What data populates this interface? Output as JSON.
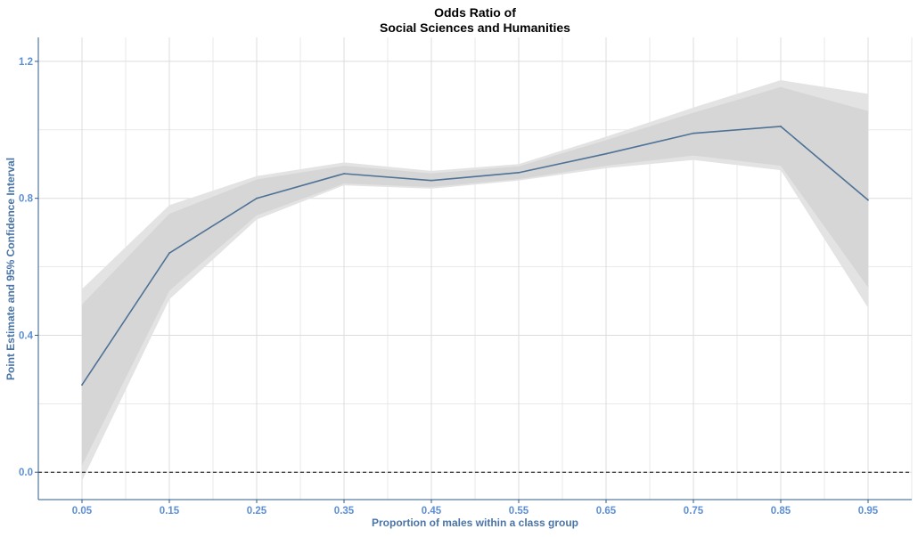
{
  "chart_data": {
    "type": "line",
    "title_lines": [
      "Odds Ratio of",
      "Social Sciences and Humanities"
    ],
    "xlabel": "Proportion of males within a class group",
    "ylabel": "Point Estimate and 95% Confidence Interval",
    "x": [
      0.05,
      0.15,
      0.25,
      0.35,
      0.45,
      0.55,
      0.65,
      0.75,
      0.85,
      0.95
    ],
    "x_tick_labels": [
      "0.05",
      "0.15",
      "0.25",
      "0.35",
      "0.45",
      "0.55",
      "0.65",
      "0.75",
      "0.85",
      "0.95"
    ],
    "y_ticks": [
      0.0,
      0.4,
      0.8,
      1.2
    ],
    "y_tick_labels": [
      "0.0",
      "0.4",
      "0.8",
      "1.2"
    ],
    "xlim": [
      0.0,
      1.0
    ],
    "ylim": [
      -0.08,
      1.27
    ],
    "series": [
      {
        "values": [
          0.255,
          0.64,
          0.8,
          0.872,
          0.852,
          0.875,
          0.93,
          0.99,
          1.01,
          0.795
        ],
        "outer_lower": [
          -0.025,
          0.505,
          0.738,
          0.838,
          0.828,
          0.852,
          0.888,
          0.912,
          0.882,
          0.48
        ],
        "outer_upper": [
          0.535,
          0.78,
          0.865,
          0.905,
          0.88,
          0.9,
          0.98,
          1.065,
          1.145,
          1.105
        ],
        "inner_lower": [
          0.02,
          0.53,
          0.75,
          0.843,
          0.833,
          0.856,
          0.895,
          0.925,
          0.895,
          0.54
        ],
        "inner_upper": [
          0.49,
          0.755,
          0.855,
          0.895,
          0.873,
          0.893,
          0.97,
          1.05,
          1.125,
          1.055
        ]
      }
    ],
    "reference_line": {
      "y": 0.0,
      "style": "dashed"
    },
    "grid": true,
    "colors": {
      "line": "#4e7296",
      "band_outer": "#e3e3e3",
      "band_inner": "#d6d6d6",
      "grid": "#dcdcdc",
      "axis": "#2e5b8a",
      "tick_label": "#5c8fd8",
      "axis_label": "#4a74a6"
    }
  }
}
